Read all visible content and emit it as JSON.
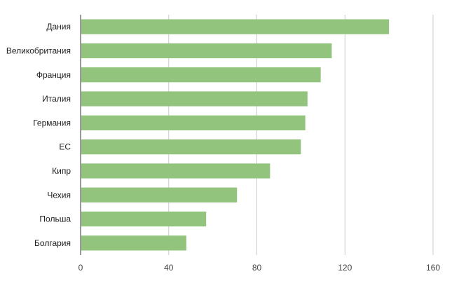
{
  "chart_data": {
    "type": "bar",
    "orientation": "horizontal",
    "categories": [
      "Дания",
      "Великобритания",
      "Франция",
      "Италия",
      "Германия",
      "ЕС",
      "Кипр",
      "Чехия",
      "Польша",
      "Болгария"
    ],
    "values": [
      140,
      114,
      109,
      103,
      102,
      100,
      86,
      71,
      57,
      48
    ],
    "xlim": [
      0,
      160
    ],
    "xticks": [
      "0",
      "40",
      "80",
      "120",
      "160"
    ],
    "grid": "vertical",
    "bar_color": "#93c47d",
    "axis_color": "#333333",
    "grid_color": "#cccccc",
    "title": "",
    "xlabel": "",
    "ylabel": ""
  }
}
